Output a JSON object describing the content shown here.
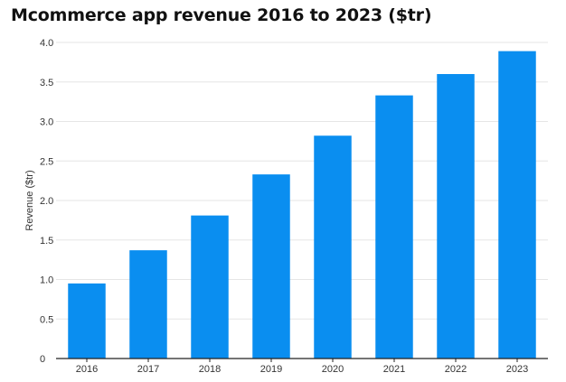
{
  "chart_data": {
    "type": "bar",
    "title": "Mcommerce app revenue 2016 to 2023 ($tr)",
    "xlabel": "",
    "ylabel": "Revenue ($tr)",
    "categories": [
      "2016",
      "2017",
      "2018",
      "2019",
      "2020",
      "2021",
      "2022",
      "2023"
    ],
    "values": [
      0.95,
      1.37,
      1.81,
      2.33,
      2.82,
      3.33,
      3.6,
      3.89
    ],
    "ylim": [
      0,
      4.0
    ],
    "yticks": [
      {
        "value": 0,
        "label": "0"
      },
      {
        "value": 0.5,
        "label": "0.5"
      },
      {
        "value": 1.0,
        "label": "1.0"
      },
      {
        "value": 1.5,
        "label": "1.5"
      },
      {
        "value": 2.0,
        "label": "2.0"
      },
      {
        "value": 2.5,
        "label": "2.5"
      },
      {
        "value": 3.0,
        "label": "3.0"
      },
      {
        "value": 3.5,
        "label": "3.5"
      },
      {
        "value": 4.0,
        "label": "4.0"
      }
    ],
    "grid": true,
    "bar_color": "#0a8ef0",
    "grid_color": "#e6e6e6",
    "axis_color": "#222222"
  }
}
